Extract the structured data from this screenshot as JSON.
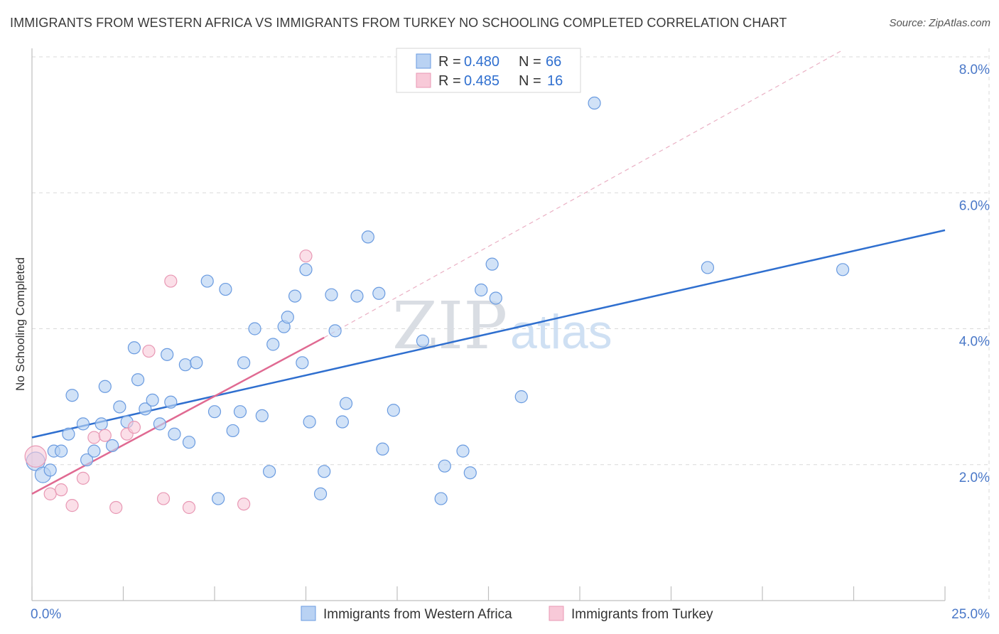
{
  "title": "IMMIGRANTS FROM WESTERN AFRICA VS IMMIGRANTS FROM TURKEY NO SCHOOLING COMPLETED CORRELATION CHART",
  "source": "Source: ZipAtlas.com",
  "watermark": {
    "part1": "ZIP",
    "part2": "atlas"
  },
  "colors": {
    "blue_fill": "#b9d2f3",
    "blue_stroke": "#6a9be0",
    "blue_line": "#2f6fcf",
    "pink_fill": "#f8c9d8",
    "pink_stroke": "#e898b4",
    "pink_line": "#e06a92",
    "grid": "#d9d9d9",
    "tick_text": "#4a78c8"
  },
  "legend": {
    "rows": [
      {
        "r_label": "R = ",
        "r_value": "0.480",
        "n_label": "N = ",
        "n_value": "66"
      },
      {
        "r_label": "R = ",
        "r_value": "0.485",
        "n_label": "N = ",
        "n_value": "16"
      }
    ]
  },
  "chart_data": {
    "type": "scatter",
    "title": "IMMIGRANTS FROM WESTERN AFRICA VS IMMIGRANTS FROM TURKEY NO SCHOOLING COMPLETED CORRELATION CHART",
    "xlabel": "",
    "ylabel": "No Schooling Completed",
    "xlim": [
      0,
      25
    ],
    "ylim": [
      0,
      8
    ],
    "x_tick_labels": [
      "0.0%",
      "25.0%"
    ],
    "y_ticks": [
      2,
      4,
      6,
      8
    ],
    "y_tick_labels": [
      "2.0%",
      "4.0%",
      "6.0%",
      "8.0%"
    ],
    "grid": true,
    "series": [
      {
        "name": "Immigrants from Western Africa",
        "color": "#b9d2f3",
        "points": [
          [
            0.1,
            2.05
          ],
          [
            0.3,
            1.85
          ],
          [
            0.5,
            1.92
          ],
          [
            0.6,
            2.2
          ],
          [
            0.8,
            2.2
          ],
          [
            1.0,
            2.45
          ],
          [
            1.1,
            3.02
          ],
          [
            1.4,
            2.6
          ],
          [
            1.5,
            2.07
          ],
          [
            1.7,
            2.2
          ],
          [
            1.9,
            2.6
          ],
          [
            2.0,
            3.15
          ],
          [
            2.2,
            2.28
          ],
          [
            2.4,
            2.85
          ],
          [
            2.6,
            2.63
          ],
          [
            2.8,
            3.72
          ],
          [
            2.9,
            3.25
          ],
          [
            3.1,
            2.82
          ],
          [
            3.3,
            2.95
          ],
          [
            3.5,
            2.6
          ],
          [
            3.7,
            3.62
          ],
          [
            3.8,
            2.92
          ],
          [
            3.9,
            2.45
          ],
          [
            4.2,
            3.47
          ],
          [
            4.3,
            2.33
          ],
          [
            4.5,
            3.5
          ],
          [
            4.8,
            4.7
          ],
          [
            5.0,
            2.78
          ],
          [
            5.1,
            1.5
          ],
          [
            5.3,
            4.58
          ],
          [
            5.5,
            2.5
          ],
          [
            5.7,
            2.78
          ],
          [
            5.8,
            3.5
          ],
          [
            6.1,
            4.0
          ],
          [
            6.3,
            2.72
          ],
          [
            6.5,
            1.9
          ],
          [
            6.6,
            3.77
          ],
          [
            6.9,
            4.03
          ],
          [
            7.0,
            4.17
          ],
          [
            7.2,
            4.48
          ],
          [
            7.4,
            3.5
          ],
          [
            7.5,
            4.87
          ],
          [
            7.6,
            2.63
          ],
          [
            7.9,
            1.57
          ],
          [
            8.0,
            1.9
          ],
          [
            8.2,
            4.5
          ],
          [
            8.3,
            3.97
          ],
          [
            8.5,
            2.63
          ],
          [
            8.6,
            2.9
          ],
          [
            8.9,
            4.48
          ],
          [
            9.2,
            5.35
          ],
          [
            9.5,
            4.52
          ],
          [
            9.6,
            2.23
          ],
          [
            9.9,
            2.8
          ],
          [
            10.7,
            3.82
          ],
          [
            11.2,
            1.5
          ],
          [
            11.3,
            1.98
          ],
          [
            11.8,
            2.2
          ],
          [
            12.0,
            1.88
          ],
          [
            12.3,
            4.57
          ],
          [
            12.6,
            4.95
          ],
          [
            12.7,
            4.45
          ],
          [
            13.4,
            3.0
          ],
          [
            15.4,
            7.32
          ],
          [
            18.5,
            4.9
          ],
          [
            22.2,
            4.87
          ]
        ],
        "trendline": {
          "x": [
            0,
            25
          ],
          "y": [
            2.4,
            5.45
          ]
        }
      },
      {
        "name": "Immigrants from Turkey",
        "color": "#f8c9d8",
        "points": [
          [
            0.1,
            2.12
          ],
          [
            0.5,
            1.57
          ],
          [
            0.8,
            1.63
          ],
          [
            1.1,
            1.4
          ],
          [
            1.4,
            1.8
          ],
          [
            1.7,
            2.4
          ],
          [
            2.0,
            2.43
          ],
          [
            2.3,
            1.37
          ],
          [
            2.6,
            2.45
          ],
          [
            2.8,
            2.55
          ],
          [
            3.2,
            3.67
          ],
          [
            3.6,
            1.5
          ],
          [
            3.8,
            4.7
          ],
          [
            4.3,
            1.37
          ],
          [
            5.8,
            1.42
          ],
          [
            7.5,
            5.07
          ]
        ],
        "trendline": {
          "x": [
            0,
            8.0
          ],
          "y": [
            1.57,
            3.87
          ]
        },
        "trendline_extension": {
          "x": [
            8.0,
            22.2
          ],
          "y": [
            3.87,
            8.1
          ]
        }
      }
    ],
    "legend": [
      "Immigrants from Western Africa",
      "Immigrants from Turkey"
    ]
  }
}
